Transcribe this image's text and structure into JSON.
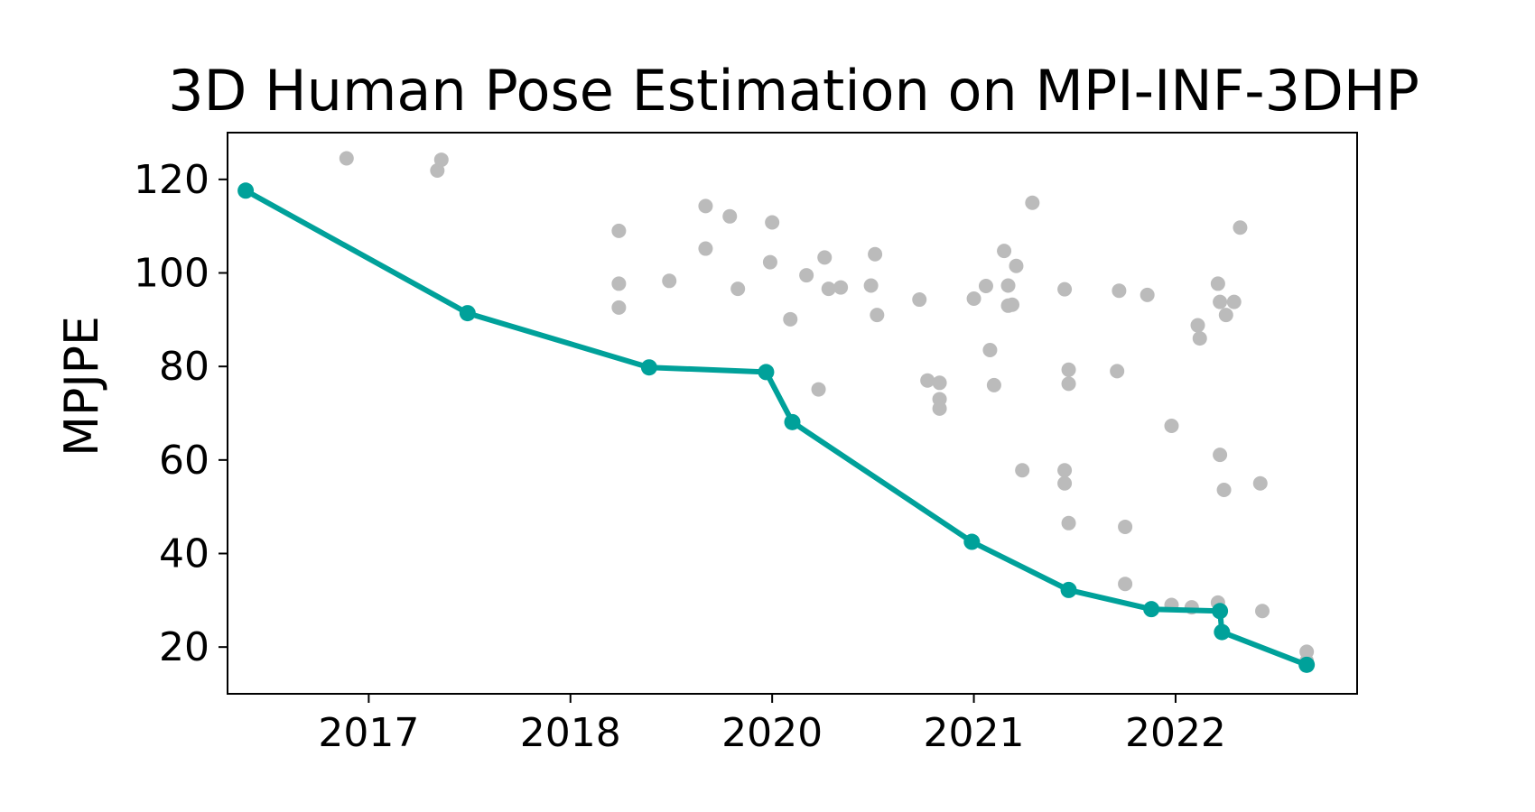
{
  "chart_data": {
    "type": "scatter",
    "title": "3D Human Pose Estimation on MPI-INF-3DHP",
    "xlabel": "",
    "ylabel": "MPJPE",
    "x_ticks": [
      {
        "label": "2017",
        "value": 2016.5
      },
      {
        "label": "2018",
        "value": 2017.5
      },
      {
        "label": "2020",
        "value": 2018.5
      },
      {
        "label": "2021",
        "value": 2019.5
      },
      {
        "label": "2022",
        "value": 2020.5
      }
    ],
    "y_ticks": [
      20,
      40,
      60,
      80,
      100,
      120
    ],
    "xlim": [
      2015.8,
      2021.4
    ],
    "ylim": [
      10,
      130
    ],
    "grid": false,
    "series": [
      {
        "role": "other-papers",
        "color": "#bbbbbb",
        "kind": "scatter",
        "points": [
          [
            2016.39,
            124.5
          ],
          [
            2016.84,
            121.9
          ],
          [
            2016.86,
            124.2
          ],
          [
            2017.74,
            109
          ],
          [
            2017.74,
            97.7
          ],
          [
            2017.74,
            92.6
          ],
          [
            2017.99,
            98.3
          ],
          [
            2018.17,
            114.3
          ],
          [
            2018.17,
            105.2
          ],
          [
            2018.29,
            112.1
          ],
          [
            2018.33,
            96.6
          ],
          [
            2018.49,
            102.3
          ],
          [
            2018.5,
            110.8
          ],
          [
            2018.59,
            90.1
          ],
          [
            2018.67,
            99.5
          ],
          [
            2018.73,
            75.1
          ],
          [
            2018.76,
            103.3
          ],
          [
            2018.78,
            96.6
          ],
          [
            2018.84,
            96.9
          ],
          [
            2018.99,
            97.3
          ],
          [
            2019.01,
            104
          ],
          [
            2019.02,
            91
          ],
          [
            2019.23,
            94.3
          ],
          [
            2019.27,
            77
          ],
          [
            2019.33,
            76.5
          ],
          [
            2019.33,
            73
          ],
          [
            2019.33,
            71
          ],
          [
            2019.5,
            94.5
          ],
          [
            2019.56,
            97.2
          ],
          [
            2019.58,
            83.5
          ],
          [
            2019.6,
            76
          ],
          [
            2019.65,
            104.7
          ],
          [
            2019.67,
            93
          ],
          [
            2019.67,
            97.3
          ],
          [
            2019.69,
            93.2
          ],
          [
            2019.71,
            101.5
          ],
          [
            2019.74,
            57.8
          ],
          [
            2019.79,
            115
          ],
          [
            2019.95,
            96.5
          ],
          [
            2019.97,
            79.3
          ],
          [
            2019.97,
            76.3
          ],
          [
            2019.95,
            57.8
          ],
          [
            2019.95,
            55
          ],
          [
            2019.97,
            46.5
          ],
          [
            2020.21,
            79
          ],
          [
            2020.22,
            96.2
          ],
          [
            2020.25,
            45.7
          ],
          [
            2020.25,
            33.5
          ],
          [
            2020.36,
            95.3
          ],
          [
            2020.48,
            67.3
          ],
          [
            2020.48,
            29
          ],
          [
            2020.58,
            28.5
          ],
          [
            2020.61,
            88.8
          ],
          [
            2020.62,
            86
          ],
          [
            2020.71,
            97.7
          ],
          [
            2020.72,
            93.8
          ],
          [
            2020.72,
            61.1
          ],
          [
            2020.74,
            53.6
          ],
          [
            2020.75,
            91
          ],
          [
            2020.79,
            93.8
          ],
          [
            2020.82,
            109.7
          ],
          [
            2020.71,
            29.5
          ],
          [
            2020.92,
            55
          ],
          [
            2020.93,
            27.7
          ],
          [
            2021.15,
            19
          ],
          [
            2021.15,
            17
          ]
        ]
      },
      {
        "role": "state-of-the-art",
        "color": "#00a19a",
        "kind": "line",
        "points": [
          [
            2015.89,
            117.6
          ],
          [
            2016.99,
            91.4
          ],
          [
            2017.89,
            79.8
          ],
          [
            2018.47,
            78.8
          ],
          [
            2018.6,
            68.1
          ],
          [
            2019.49,
            42.5
          ],
          [
            2019.97,
            32.2
          ],
          [
            2020.38,
            28.1
          ],
          [
            2020.72,
            27.7
          ],
          [
            2020.73,
            23.2
          ],
          [
            2021.15,
            16.2
          ]
        ]
      }
    ]
  }
}
